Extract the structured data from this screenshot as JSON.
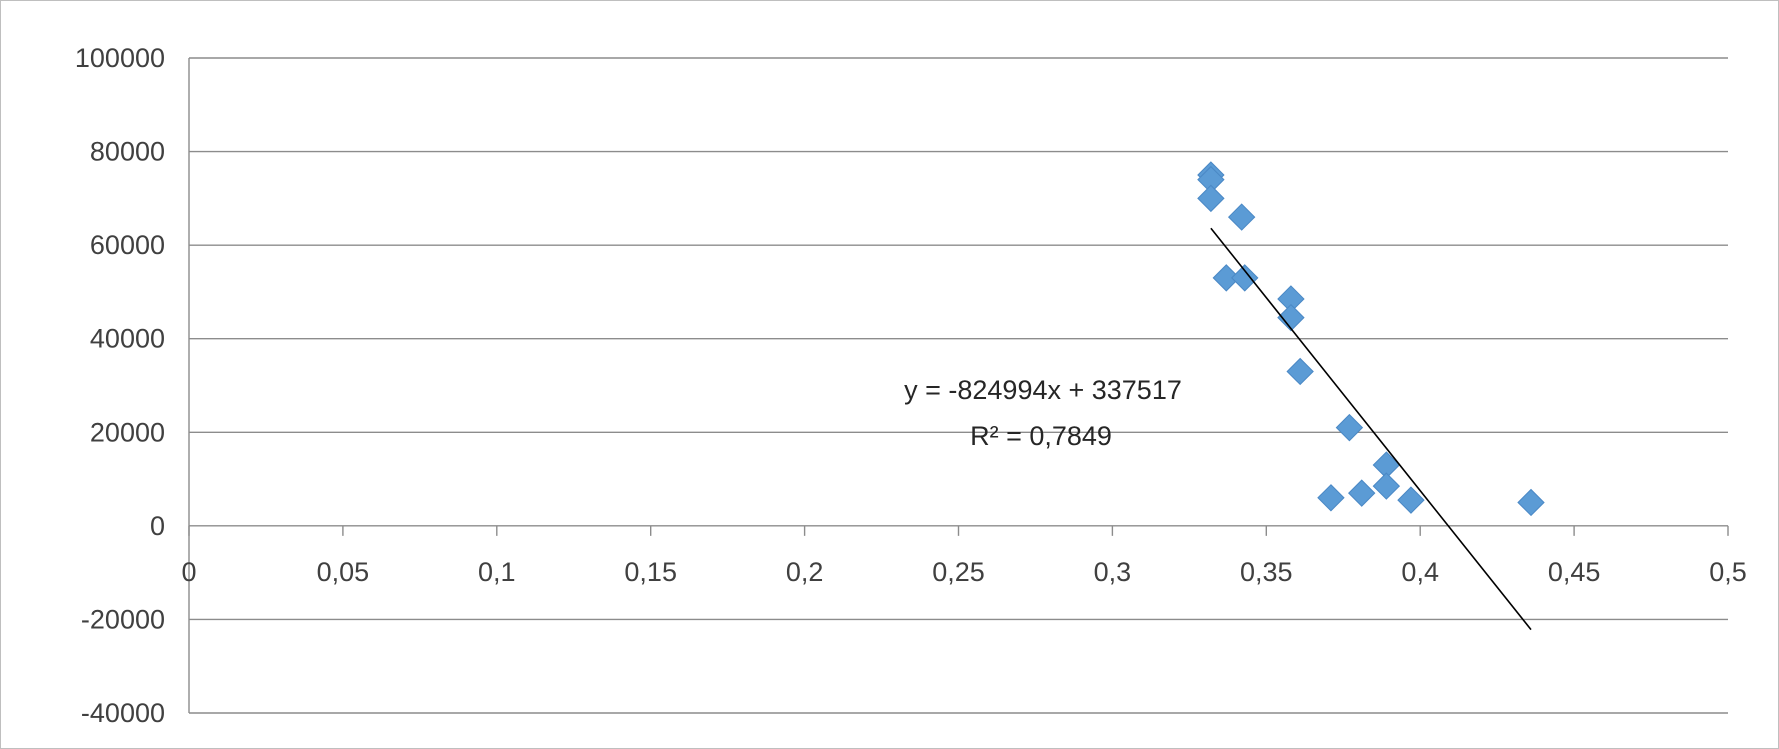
{
  "chart_data": {
    "type": "scatter",
    "title": "",
    "xlabel": "",
    "ylabel": "",
    "xlim": [
      0,
      0.5
    ],
    "ylim": [
      -40000,
      100000
    ],
    "x_ticks": [
      {
        "value": 0,
        "label": "0"
      },
      {
        "value": 0.05,
        "label": "0,05"
      },
      {
        "value": 0.1,
        "label": "0,1"
      },
      {
        "value": 0.15,
        "label": "0,15"
      },
      {
        "value": 0.2,
        "label": "0,2"
      },
      {
        "value": 0.25,
        "label": "0,25"
      },
      {
        "value": 0.3,
        "label": "0,3"
      },
      {
        "value": 0.35,
        "label": "0,35"
      },
      {
        "value": 0.4,
        "label": "0,4"
      },
      {
        "value": 0.45,
        "label": "0,45"
      },
      {
        "value": 0.5,
        "label": "0,5"
      }
    ],
    "y_ticks": [
      {
        "value": 100000,
        "label": "100000"
      },
      {
        "value": 80000,
        "label": "80000"
      },
      {
        "value": 60000,
        "label": "60000"
      },
      {
        "value": 40000,
        "label": "40000"
      },
      {
        "value": 20000,
        "label": "20000"
      },
      {
        "value": 0,
        "label": "0"
      },
      {
        "value": -20000,
        "label": "-20000"
      },
      {
        "value": -40000,
        "label": "-40000"
      }
    ],
    "grid": "horizontal",
    "marker_color": "#5b9bd5",
    "trendline_color": "#000000",
    "series": [
      {
        "points": [
          {
            "x": 0.332,
            "y": 75000
          },
          {
            "x": 0.332,
            "y": 74000
          },
          {
            "x": 0.332,
            "y": 70000
          },
          {
            "x": 0.342,
            "y": 66000
          },
          {
            "x": 0.337,
            "y": 53000
          },
          {
            "x": 0.343,
            "y": 53000
          },
          {
            "x": 0.358,
            "y": 48500
          },
          {
            "x": 0.358,
            "y": 44500
          },
          {
            "x": 0.361,
            "y": 33000
          },
          {
            "x": 0.377,
            "y": 21000
          },
          {
            "x": 0.389,
            "y": 13000
          },
          {
            "x": 0.389,
            "y": 8500
          },
          {
            "x": 0.371,
            "y": 6000
          },
          {
            "x": 0.381,
            "y": 7000
          },
          {
            "x": 0.397,
            "y": 5500
          },
          {
            "x": 0.436,
            "y": 5000
          }
        ]
      }
    ],
    "trendline": {
      "slope": -824994,
      "intercept": 337517,
      "x_range": [
        0.332,
        0.436
      ]
    },
    "annotations": {
      "equation": "y = -824994x + 337517",
      "r_squared": "R² = 0,7849"
    }
  }
}
